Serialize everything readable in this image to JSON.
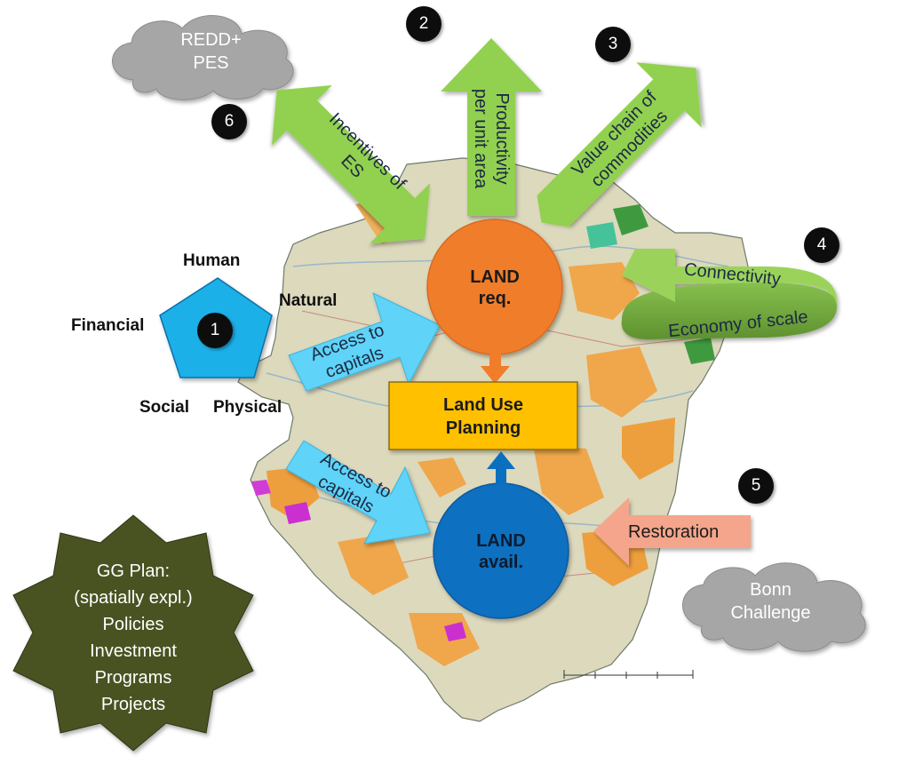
{
  "clouds": {
    "redd_pes": [
      "REDD+",
      "PES"
    ],
    "bonn": [
      "Bonn",
      "Challenge"
    ]
  },
  "badges": [
    "1",
    "2",
    "3",
    "4",
    "5",
    "6"
  ],
  "capitals": {
    "human": "Human",
    "natural": "Natural",
    "financial": "Financial",
    "social": "Social",
    "physical": "Physical"
  },
  "arrows": {
    "incentives": [
      "Incentives of",
      "ES"
    ],
    "productivity": [
      "Productivity",
      "per unit area"
    ],
    "value_chain": [
      "Value chain of",
      "commodities"
    ],
    "connectivity": "Connectivity",
    "economy": "Economy of scale",
    "access_top": [
      "Access to",
      "capitals"
    ],
    "access_bottom": [
      "Access to",
      "capitals"
    ],
    "restoration": "Restoration"
  },
  "land_req": [
    "LAND",
    "req."
  ],
  "land_avail": [
    "LAND",
    "avail."
  ],
  "planning": [
    "Land Use",
    "Planning"
  ],
  "gg_plan": [
    "GG Plan:",
    "(spatially expl.)",
    "Policies",
    "Investment",
    "Programs",
    "Projects"
  ],
  "colors": {
    "green_arrow": "#92d050",
    "dark_green_band": "#76a843",
    "blue_arrow": "#5fd3f8",
    "pentagon": "#1fb0e8",
    "land_req": "#f07d2a",
    "land_avail": "#0b6fc0",
    "planning_box": "#ffc000",
    "restoration": "#f4a58b",
    "cloud": "#a6a6a6",
    "gg_star": "#4a5320"
  }
}
